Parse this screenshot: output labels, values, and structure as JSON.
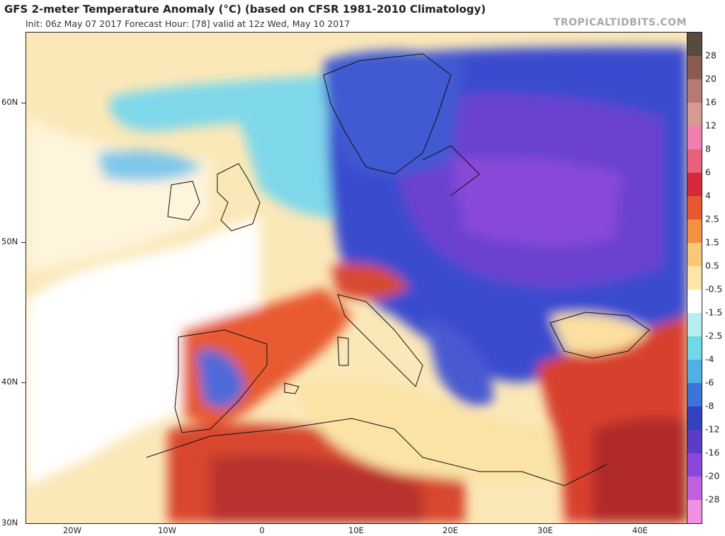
{
  "header": {
    "title": "GFS 2-meter Temperature Anomaly (°C) (based on CFSR 1981-2010 Climatology)",
    "subtitle": "Init: 06z May 07 2017   Forecast Hour: [78]   valid at 12z Wed, May 10 2017",
    "brand": "TROPICALTIDBITS.COM"
  },
  "map": {
    "lat_labels": [
      "60N",
      "50N",
      "40N",
      "30N"
    ],
    "lon_labels": [
      "20W",
      "10W",
      "0",
      "10E",
      "20E",
      "30E",
      "40E"
    ]
  },
  "colorbar": {
    "labels": [
      "28",
      "20",
      "16",
      "12",
      "8",
      "6",
      "4",
      "2.5",
      "1.5",
      "0.5",
      "-0.5",
      "-1.5",
      "-2.5",
      "-4",
      "-6",
      "-8",
      "-12",
      "-16",
      "-20",
      "-28"
    ],
    "colors": [
      "#5a4a3e",
      "#8a5c50",
      "#b57b72",
      "#d69a93",
      "#f07fb0",
      "#e8607a",
      "#d8283c",
      "#e85830",
      "#f4903e",
      "#f8c878",
      "#fbe6a8",
      "#ffffff",
      "#b8eef0",
      "#6fd9e6",
      "#4fb0e6",
      "#3a74d8",
      "#3343c0",
      "#5a3cc8",
      "#8a48d8",
      "#c060e0",
      "#f090e0"
    ]
  }
}
